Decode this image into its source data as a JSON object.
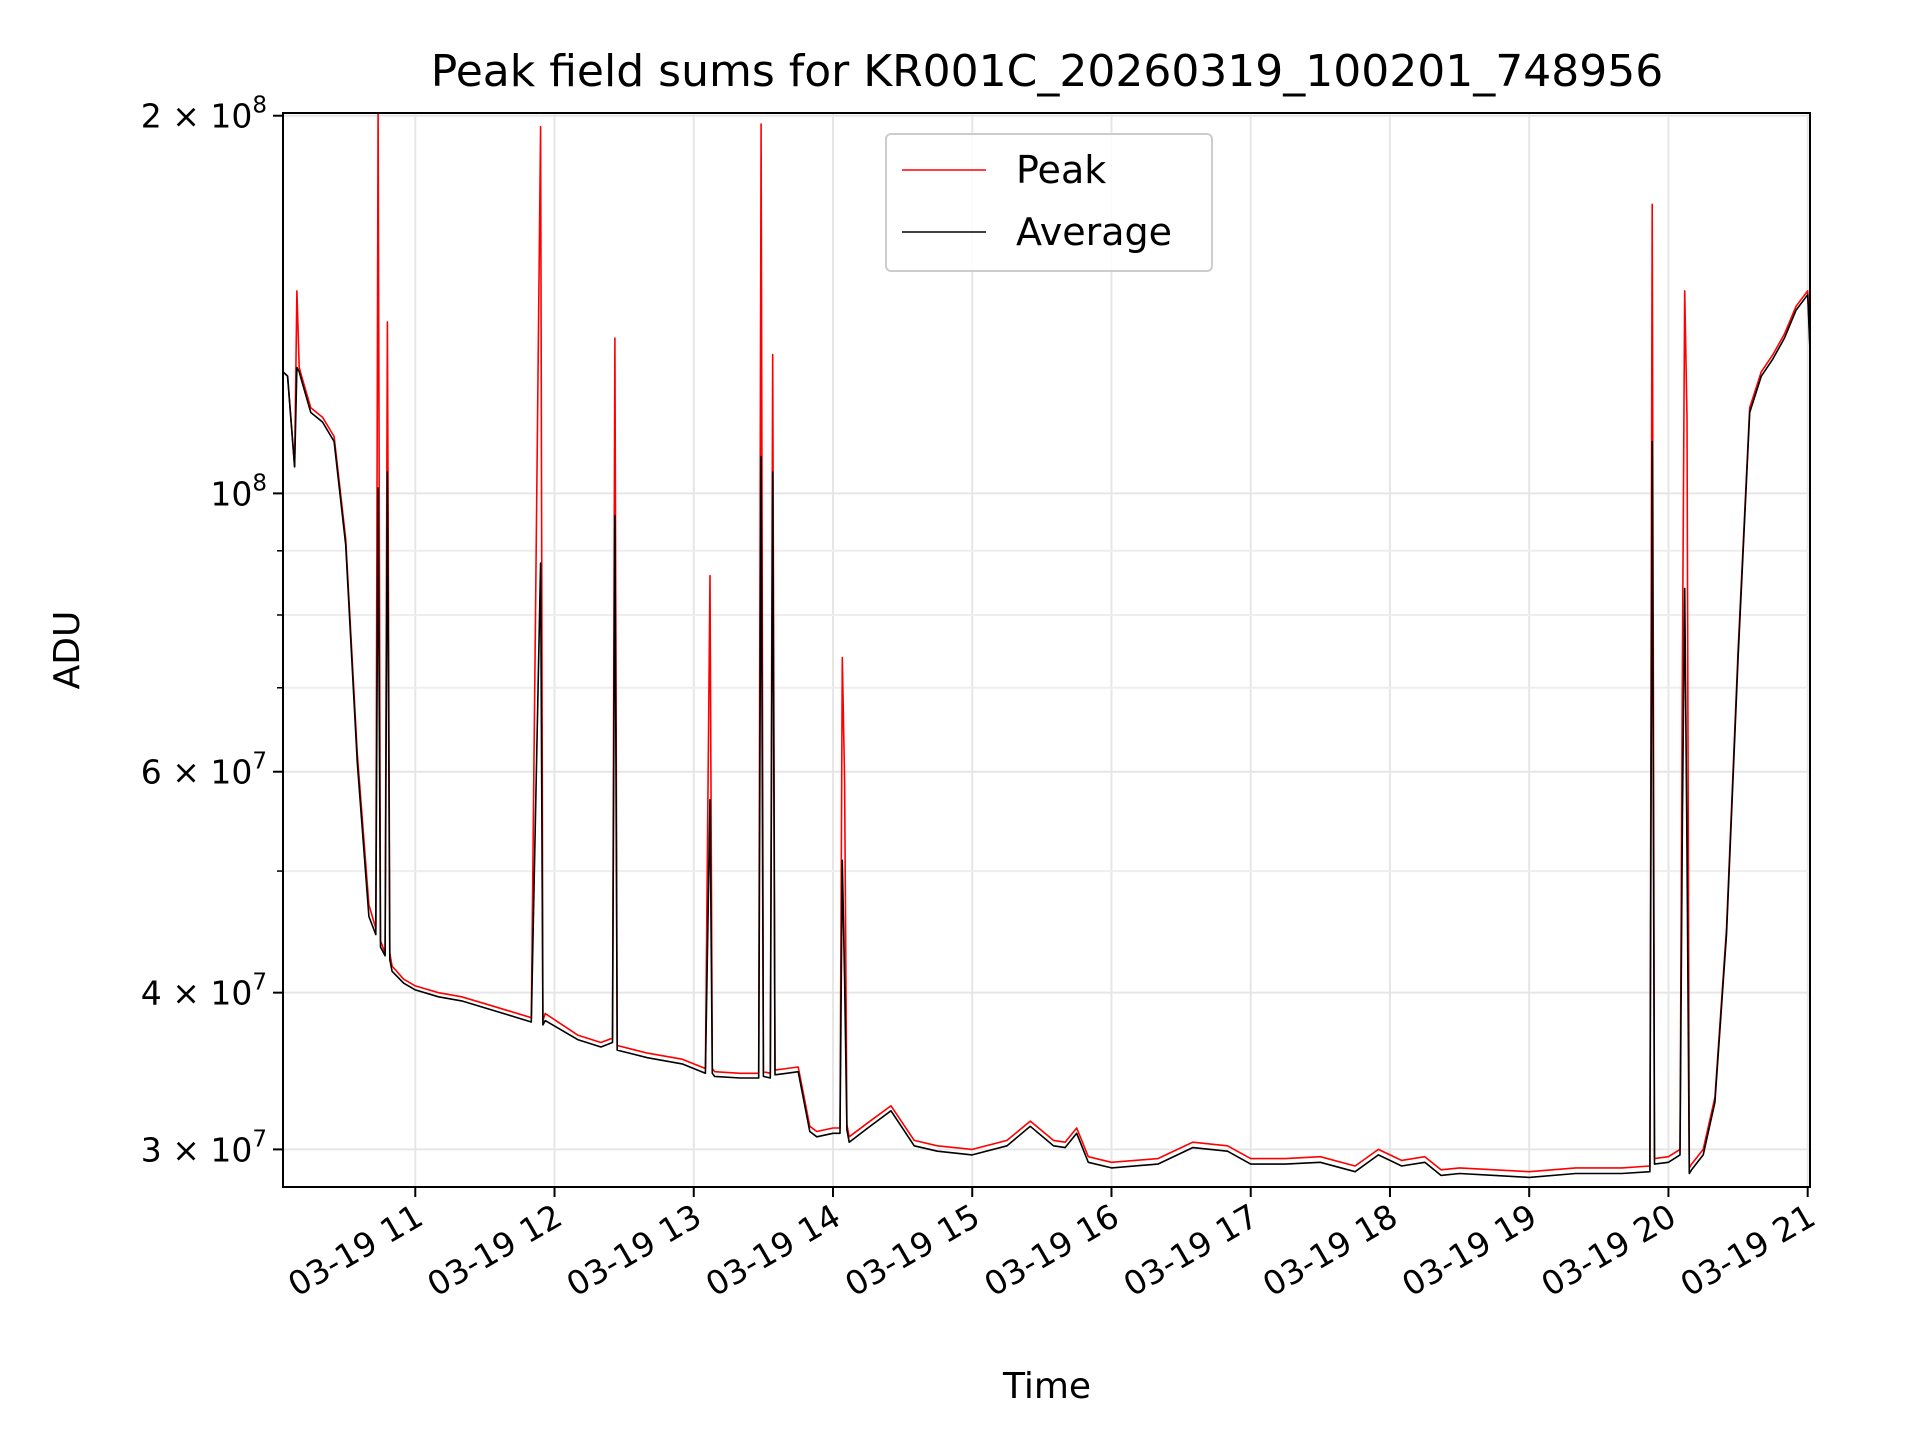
{
  "chart_data": {
    "type": "line",
    "title": "Peak field sums for KR001C_20260319_100201_748956",
    "xlabel": "Time",
    "ylabel": "ADU",
    "y_scale": "log",
    "ylim": [
      28000000,
      201000000
    ],
    "xlim": [
      "2026-03-19 10:03",
      "2026-03-19 21:01"
    ],
    "grid": true,
    "legend_position": "top-center",
    "x_ticks": [
      {
        "value": "2026-03-19 11:00",
        "label": "03-19 11"
      },
      {
        "value": "2026-03-19 12:00",
        "label": "03-19 12"
      },
      {
        "value": "2026-03-19 13:00",
        "label": "03-19 13"
      },
      {
        "value": "2026-03-19 14:00",
        "label": "03-19 14"
      },
      {
        "value": "2026-03-19 15:00",
        "label": "03-19 15"
      },
      {
        "value": "2026-03-19 16:00",
        "label": "03-19 16"
      },
      {
        "value": "2026-03-19 17:00",
        "label": "03-19 17"
      },
      {
        "value": "2026-03-19 18:00",
        "label": "03-19 18"
      },
      {
        "value": "2026-03-19 19:00",
        "label": "03-19 19"
      },
      {
        "value": "2026-03-19 20:00",
        "label": "03-19 20"
      },
      {
        "value": "2026-03-19 21:00",
        "label": "03-19 21"
      }
    ],
    "y_major_ticks": [
      {
        "value": 30000000,
        "base": "3 × 10",
        "exp": "7"
      },
      {
        "value": 40000000,
        "base": "4 × 10",
        "exp": "7"
      },
      {
        "value": 60000000,
        "base": "6 × 10",
        "exp": "7"
      },
      {
        "value": 100000000,
        "base": "10",
        "exp": "8"
      },
      {
        "value": 200000000,
        "base": "2 × 10",
        "exp": "8"
      }
    ],
    "y_minor_ticks": [
      50000000,
      70000000,
      80000000,
      90000000
    ],
    "colors": {
      "Peak": "#ff0000",
      "Average": "#000000"
    },
    "series": [
      {
        "name": "Peak",
        "x": [
          "2026-03-19 10:03",
          "2026-03-19 10:05",
          "2026-03-19 10:08",
          "2026-03-19 10:09",
          "2026-03-19 10:10",
          "2026-03-19 10:11",
          "2026-03-19 10:15",
          "2026-03-19 10:20",
          "2026-03-19 10:25",
          "2026-03-19 10:30",
          "2026-03-19 10:35",
          "2026-03-19 10:40",
          "2026-03-19 10:43",
          "2026-03-19 10:44",
          "2026-03-19 10:45",
          "2026-03-19 10:47",
          "2026-03-19 10:48",
          "2026-03-19 10:49",
          "2026-03-19 10:50",
          "2026-03-19 10:55",
          "2026-03-19 11:00",
          "2026-03-19 11:10",
          "2026-03-19 11:20",
          "2026-03-19 11:30",
          "2026-03-19 11:40",
          "2026-03-19 11:50",
          "2026-03-19 11:54",
          "2026-03-19 11:55",
          "2026-03-19 11:56",
          "2026-03-19 12:10",
          "2026-03-19 12:20",
          "2026-03-19 12:25",
          "2026-03-19 12:26",
          "2026-03-19 12:27",
          "2026-03-19 12:40",
          "2026-03-19 12:55",
          "2026-03-19 13:05",
          "2026-03-19 13:07",
          "2026-03-19 13:08",
          "2026-03-19 13:09",
          "2026-03-19 13:20",
          "2026-03-19 13:28",
          "2026-03-19 13:29",
          "2026-03-19 13:30",
          "2026-03-19 13:33",
          "2026-03-19 13:34",
          "2026-03-19 13:35",
          "2026-03-19 13:40",
          "2026-03-19 13:45",
          "2026-03-19 13:50",
          "2026-03-19 13:53",
          "2026-03-19 14:00",
          "2026-03-19 14:03",
          "2026-03-19 14:04",
          "2026-03-19 14:05",
          "2026-03-19 14:06",
          "2026-03-19 14:07",
          "2026-03-19 14:15",
          "2026-03-19 14:25",
          "2026-03-19 14:35",
          "2026-03-19 14:45",
          "2026-03-19 15:00",
          "2026-03-19 15:15",
          "2026-03-19 15:25",
          "2026-03-19 15:35",
          "2026-03-19 15:40",
          "2026-03-19 15:45",
          "2026-03-19 15:50",
          "2026-03-19 16:00",
          "2026-03-19 16:20",
          "2026-03-19 16:35",
          "2026-03-19 16:50",
          "2026-03-19 17:00",
          "2026-03-19 17:15",
          "2026-03-19 17:30",
          "2026-03-19 17:45",
          "2026-03-19 17:55",
          "2026-03-19 18:05",
          "2026-03-19 18:15",
          "2026-03-19 18:22",
          "2026-03-19 18:30",
          "2026-03-19 18:45",
          "2026-03-19 19:00",
          "2026-03-19 19:20",
          "2026-03-19 19:40",
          "2026-03-19 19:52",
          "2026-03-19 19:53",
          "2026-03-19 19:54",
          "2026-03-19 20:00",
          "2026-03-19 20:05",
          "2026-03-19 20:06",
          "2026-03-19 20:07",
          "2026-03-19 20:08",
          "2026-03-19 20:09",
          "2026-03-19 20:10",
          "2026-03-19 20:15",
          "2026-03-19 20:20",
          "2026-03-19 20:25",
          "2026-03-19 20:30",
          "2026-03-19 20:35",
          "2026-03-19 20:40",
          "2026-03-19 20:45",
          "2026-03-19 20:50",
          "2026-03-19 20:55",
          "2026-03-19 21:00",
          "2026-03-19 21:01"
        ],
        "values": [
          125000000,
          124000000,
          105000000,
          145000000,
          126000000,
          124000000,
          117000000,
          115000000,
          111000000,
          92000000,
          62000000,
          47000000,
          45000000,
          203000000,
          44000000,
          43000000,
          137000000,
          43000000,
          42000000,
          41000000,
          40500000,
          40000000,
          39700000,
          39200000,
          38700000,
          38200000,
          196000000,
          38000000,
          38500000,
          37000000,
          36500000,
          36800000,
          133000000,
          36300000,
          35800000,
          35400000,
          34800000,
          86000000,
          34800000,
          34600000,
          34500000,
          34500000,
          197000000,
          34600000,
          34500000,
          129000000,
          34700000,
          34800000,
          34900000,
          31300000,
          31000000,
          31200000,
          31200000,
          74000000,
          59000000,
          31400000,
          30700000,
          31500000,
          32500000,
          30500000,
          30200000,
          30000000,
          30500000,
          31600000,
          30500000,
          30400000,
          31200000,
          29600000,
          29300000,
          29500000,
          30400000,
          30200000,
          29500000,
          29500000,
          29600000,
          29100000,
          30000000,
          29400000,
          29600000,
          28900000,
          29000000,
          28900000,
          28800000,
          29000000,
          29000000,
          29100000,
          170000000,
          29500000,
          29600000,
          30000000,
          73000000,
          145000000,
          115000000,
          29000000,
          29200000,
          30000000,
          33000000,
          45000000,
          75000000,
          117000000,
          125000000,
          129000000,
          134000000,
          141000000,
          145000000,
          131000000
        ]
      },
      {
        "name": "Average",
        "x": [
          "2026-03-19 10:03",
          "2026-03-19 10:05",
          "2026-03-19 10:08",
          "2026-03-19 10:09",
          "2026-03-19 10:10",
          "2026-03-19 10:11",
          "2026-03-19 10:15",
          "2026-03-19 10:20",
          "2026-03-19 10:25",
          "2026-03-19 10:30",
          "2026-03-19 10:35",
          "2026-03-19 10:40",
          "2026-03-19 10:43",
          "2026-03-19 10:44",
          "2026-03-19 10:45",
          "2026-03-19 10:47",
          "2026-03-19 10:48",
          "2026-03-19 10:49",
          "2026-03-19 10:50",
          "2026-03-19 10:55",
          "2026-03-19 11:00",
          "2026-03-19 11:10",
          "2026-03-19 11:20",
          "2026-03-19 11:30",
          "2026-03-19 11:40",
          "2026-03-19 11:50",
          "2026-03-19 11:54",
          "2026-03-19 11:55",
          "2026-03-19 11:56",
          "2026-03-19 12:10",
          "2026-03-19 12:20",
          "2026-03-19 12:25",
          "2026-03-19 12:26",
          "2026-03-19 12:27",
          "2026-03-19 12:40",
          "2026-03-19 12:55",
          "2026-03-19 13:05",
          "2026-03-19 13:07",
          "2026-03-19 13:08",
          "2026-03-19 13:09",
          "2026-03-19 13:20",
          "2026-03-19 13:28",
          "2026-03-19 13:29",
          "2026-03-19 13:30",
          "2026-03-19 13:33",
          "2026-03-19 13:34",
          "2026-03-19 13:35",
          "2026-03-19 13:40",
          "2026-03-19 13:45",
          "2026-03-19 13:50",
          "2026-03-19 13:53",
          "2026-03-19 14:00",
          "2026-03-19 14:03",
          "2026-03-19 14:04",
          "2026-03-19 14:05",
          "2026-03-19 14:06",
          "2026-03-19 14:07",
          "2026-03-19 14:15",
          "2026-03-19 14:25",
          "2026-03-19 14:35",
          "2026-03-19 14:45",
          "2026-03-19 15:00",
          "2026-03-19 15:15",
          "2026-03-19 15:25",
          "2026-03-19 15:35",
          "2026-03-19 15:40",
          "2026-03-19 15:45",
          "2026-03-19 15:50",
          "2026-03-19 16:00",
          "2026-03-19 16:20",
          "2026-03-19 16:35",
          "2026-03-19 16:50",
          "2026-03-19 17:00",
          "2026-03-19 17:15",
          "2026-03-19 17:30",
          "2026-03-19 17:45",
          "2026-03-19 17:55",
          "2026-03-19 18:05",
          "2026-03-19 18:15",
          "2026-03-19 18:22",
          "2026-03-19 18:30",
          "2026-03-19 18:45",
          "2026-03-19 19:00",
          "2026-03-19 19:20",
          "2026-03-19 19:40",
          "2026-03-19 19:52",
          "2026-03-19 19:53",
          "2026-03-19 19:54",
          "2026-03-19 20:00",
          "2026-03-19 20:05",
          "2026-03-19 20:06",
          "2026-03-19 20:07",
          "2026-03-19 20:08",
          "2026-03-19 20:09",
          "2026-03-19 20:10",
          "2026-03-19 20:15",
          "2026-03-19 20:20",
          "2026-03-19 20:25",
          "2026-03-19 20:30",
          "2026-03-19 20:35",
          "2026-03-19 20:40",
          "2026-03-19 20:45",
          "2026-03-19 20:50",
          "2026-03-19 20:55",
          "2026-03-19 21:00",
          "2026-03-19 21:01"
        ],
        "values": [
          125000000,
          124000000,
          105000000,
          126000000,
          125000000,
          123000000,
          116000000,
          114000000,
          110000000,
          91000000,
          61000000,
          46000000,
          44500000,
          101000000,
          43500000,
          42800000,
          104000000,
          42500000,
          41600000,
          40700000,
          40200000,
          39700000,
          39400000,
          38900000,
          38400000,
          37900000,
          88000000,
          37700000,
          38000000,
          36700000,
          36200000,
          36500000,
          96000000,
          36000000,
          35500000,
          35100000,
          34500000,
          57000000,
          34500000,
          34300000,
          34200000,
          34200000,
          107000000,
          34300000,
          34200000,
          104000000,
          34400000,
          34500000,
          34600000,
          31000000,
          30700000,
          30900000,
          30900000,
          51000000,
          41000000,
          31100000,
          30400000,
          31200000,
          32200000,
          30200000,
          29900000,
          29700000,
          30200000,
          31300000,
          30200000,
          30100000,
          30900000,
          29300000,
          29000000,
          29200000,
          30100000,
          29900000,
          29200000,
          29200000,
          29300000,
          28800000,
          29700000,
          29100000,
          29300000,
          28600000,
          28700000,
          28600000,
          28500000,
          28700000,
          28700000,
          28800000,
          110000000,
          29200000,
          29300000,
          29700000,
          55000000,
          84000000,
          52000000,
          28700000,
          28900000,
          29700000,
          32700000,
          44500000,
          74000000,
          116000000,
          124000000,
          128000000,
          133000000,
          140000000,
          144000000,
          130000000
        ]
      }
    ]
  }
}
